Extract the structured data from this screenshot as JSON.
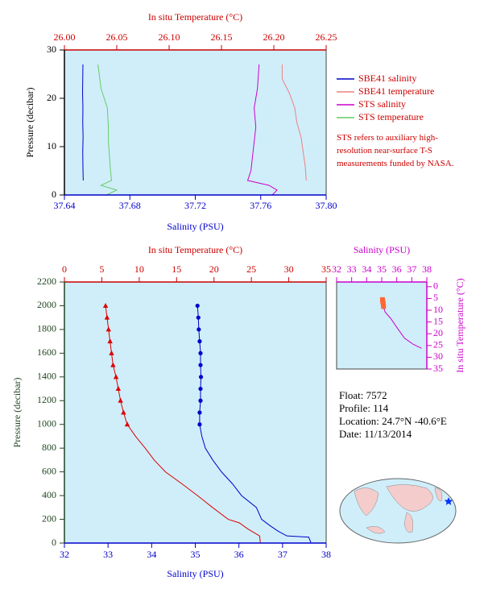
{
  "chart_data": [
    {
      "type": "line",
      "x2label": "In situ Temperature (°C)",
      "xlabel": "Salinity (PSU)",
      "ylabel": "Pressure (decibar)",
      "xlim": [
        37.64,
        37.8
      ],
      "xticks": [
        37.64,
        37.68,
        37.72,
        37.76,
        {
          "value": 37.8,
          "label": "37.80"
        }
      ],
      "x2lim": [
        26,
        26.25
      ],
      "x2ticks": [
        {
          "value": 26,
          "label": "26.00"
        },
        26.05,
        {
          "value": 26.1,
          "label": "26.10"
        },
        26.15,
        {
          "value": 26.2,
          "label": "26.20"
        },
        26.25
      ],
      "ylim": [
        30,
        0
      ],
      "yticks": [
        0,
        10,
        20,
        30
      ],
      "legend": "right",
      "series": [
        {
          "name": "SBE41 salinity",
          "color": "#0000cc",
          "x": [
            37.6515,
            37.6513,
            37.6512,
            37.6514,
            37.6512,
            37.6513,
            37.6511,
            37.6512,
            37.6513
          ],
          "values": [
            3,
            6,
            9,
            12,
            15,
            18,
            21,
            24,
            27
          ]
        },
        {
          "name": "SBE41 temperature",
          "color": "#f08080",
          "axis": "x2",
          "x": [
            26.231,
            26.23,
            26.228,
            26.226,
            26.222,
            26.22,
            26.215,
            26.208,
            26.208
          ],
          "values": [
            3,
            6,
            9,
            12,
            15,
            18,
            21,
            24,
            27
          ]
        },
        {
          "name": "STS salinity",
          "color": "#cc00cc",
          "x": [
            37.767,
            37.77,
            37.765,
            37.752,
            37.754,
            37.755,
            37.756,
            37.757,
            37.756,
            37.758,
            37.759
          ],
          "values": [
            0,
            1,
            2,
            3,
            5,
            8,
            11,
            14,
            18,
            22,
            27
          ]
        },
        {
          "name": "STS temperature",
          "color": "#66cc66",
          "axis": "x2",
          "x": [
            26.04,
            26.05,
            26.035,
            26.045,
            26.044,
            26.043,
            26.042,
            26.042,
            26.041,
            26.035,
            26.032
          ],
          "values": [
            0,
            1,
            2,
            3,
            5,
            8,
            11,
            14,
            18,
            22,
            27
          ]
        }
      ]
    },
    {
      "type": "line",
      "x2label": "In situ Temperature (°C)",
      "xlabel": "Salinity (PSU)",
      "ylabel": "Pressure (decibar)",
      "xlim": [
        32,
        38
      ],
      "xticks": [
        32,
        33,
        34,
        35,
        36,
        37,
        38
      ],
      "x2lim": [
        0,
        35
      ],
      "x2ticks": [
        0,
        5,
        10,
        15,
        20,
        25,
        30,
        35
      ],
      "ylim": [
        2200,
        0
      ],
      "yticks": [
        0,
        200,
        400,
        600,
        800,
        1000,
        1200,
        1400,
        1600,
        1800,
        2000,
        2200
      ],
      "series": [
        {
          "color": "#0000cc",
          "x": [
            37.65,
            37.6,
            37.1,
            36.9,
            36.7,
            36.52,
            36.4,
            36.06,
            35.85,
            35.6,
            35.4,
            35.23,
            35.15,
            35.1
          ],
          "values": [
            5,
            50,
            60,
            100,
            150,
            200,
            300,
            400,
            500,
            600,
            700,
            800,
            900,
            1000
          ]
        },
        {
          "color": "#0000cc",
          "marker": "circle",
          "x": [
            35.1,
            35.1,
            35.12,
            35.12,
            35.13,
            35.12,
            35.12,
            35.1,
            35.08,
            35.07,
            35.05
          ],
          "values": [
            1000,
            1100,
            1200,
            1300,
            1400,
            1500,
            1600,
            1700,
            1800,
            1900,
            2000
          ]
        },
        {
          "color": "#dd0000",
          "axis": "x2",
          "x": [
            26.2,
            26.1,
            24.5,
            23.4,
            21.9,
            19.8,
            17.8,
            15.7,
            13.5,
            12,
            10.8,
            9.5,
            8.4
          ],
          "values": [
            5,
            60,
            120,
            170,
            200,
            300,
            400,
            500,
            600,
            700,
            800,
            900,
            1000
          ]
        },
        {
          "color": "#dd0000",
          "axis": "x2",
          "marker": "triangle",
          "x": [
            8.4,
            7.9,
            7.5,
            7.2,
            6.9,
            6.5,
            6.3,
            6.1,
            5.9,
            5.7,
            5.5
          ],
          "values": [
            1000,
            1100,
            1200,
            1300,
            1400,
            1500,
            1600,
            1700,
            1800,
            1900,
            2000
          ]
        }
      ]
    },
    {
      "type": "line",
      "xlabel": "Salinity (PSU)",
      "ylabel": "In situ Temperature (°C)",
      "xlim": [
        32,
        38
      ],
      "xticks": [
        32,
        33,
        34,
        35,
        36,
        37,
        38
      ],
      "ylim": [
        -2,
        35
      ],
      "yticks": [
        0,
        5,
        10,
        15,
        20,
        25,
        30,
        35
      ],
      "x_axis_side": "top",
      "y_axis_side": "right",
      "series": [
        {
          "color": "#cc00cc",
          "x": [
            35.05,
            35.1,
            35.23,
            35.6,
            36.06,
            36.52,
            37.1,
            37.65
          ],
          "values": [
            5.5,
            8.4,
            10.8,
            13.5,
            17.8,
            21.9,
            24.5,
            26.2
          ]
        },
        {
          "color": "#ff6633",
          "marker": "square",
          "x": [
            35.05,
            35.07,
            35.1,
            35.12
          ],
          "values": [
            5.5,
            6.3,
            7.2,
            8.4
          ]
        }
      ]
    }
  ],
  "note": "STS refers to auxiliary high-resolution near-surface T-S measurements funded by NASA.",
  "info": [
    "Float:  7572",
    "Profile:  114",
    "Location:  24.7°N  -40.6°E",
    "Date:  11/13/2014"
  ]
}
